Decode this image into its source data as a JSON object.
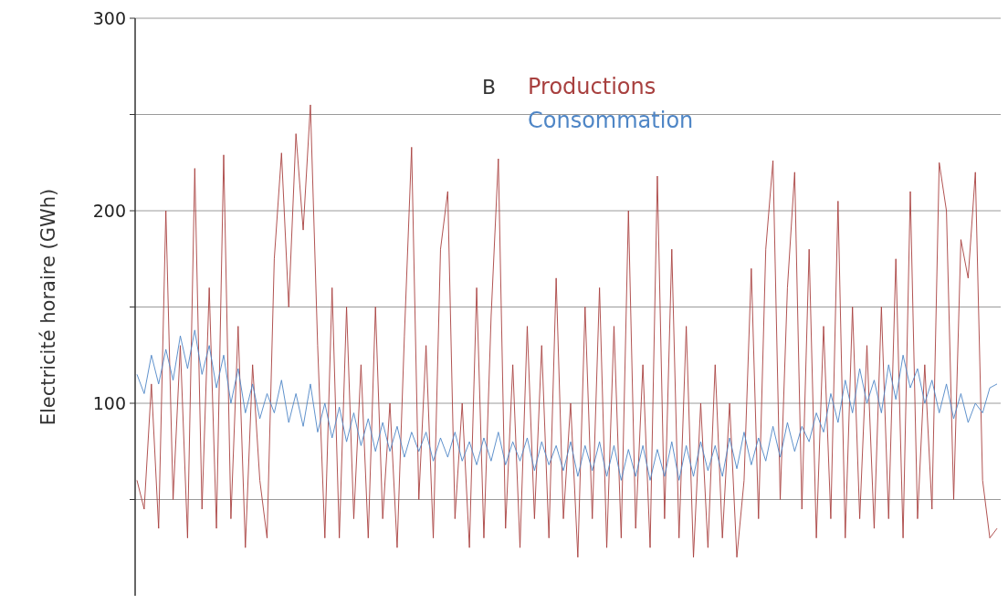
{
  "chart_data": {
    "type": "line",
    "ylabel": "Electricité horaire (GWh)",
    "annotations": [
      "B"
    ],
    "categories": [
      null,
      null,
      null,
      null,
      null,
      null,
      null,
      null,
      null,
      null,
      null,
      null,
      null,
      null,
      null,
      null,
      null,
      null,
      null,
      null,
      null,
      null,
      null,
      null,
      null,
      null,
      null,
      null,
      null,
      null,
      null,
      null,
      null,
      null,
      null,
      null,
      null,
      null,
      null,
      null,
      null,
      null,
      null,
      null,
      null,
      null,
      null,
      null,
      null,
      null,
      null,
      null,
      null,
      null,
      null,
      null,
      null,
      null,
      null,
      null,
      null,
      null,
      null,
      null,
      null,
      null,
      null,
      null,
      null,
      null,
      null,
      null,
      null,
      null,
      null,
      null,
      null,
      null,
      null,
      null,
      null,
      null,
      null,
      null,
      null,
      null,
      null,
      null,
      null,
      null,
      null,
      null,
      null,
      null,
      null,
      null,
      null,
      null,
      null,
      null,
      null,
      null,
      null,
      null,
      null,
      null,
      null,
      null,
      null,
      null,
      null,
      null,
      null,
      null,
      null,
      null,
      null,
      null,
      null,
      null
    ],
    "series": [
      {
        "name": "Productions",
        "color": "#a8403f",
        "values": [
          60,
          45,
          110,
          35,
          200,
          50,
          130,
          30,
          222,
          45,
          160,
          35,
          229,
          40,
          140,
          25,
          120,
          60,
          30,
          175,
          230,
          150,
          240,
          190,
          255,
          130,
          30,
          160,
          30,
          150,
          40,
          120,
          30,
          150,
          40,
          100,
          25,
          135,
          233,
          50,
          130,
          30,
          180,
          210,
          40,
          100,
          25,
          160,
          30,
          145,
          227,
          35,
          120,
          25,
          140,
          40,
          130,
          30,
          165,
          40,
          100,
          20,
          150,
          40,
          160,
          25,
          140,
          30,
          200,
          35,
          120,
          25,
          218,
          40,
          180,
          30,
          140,
          20,
          100,
          25,
          120,
          30,
          100,
          20,
          60,
          170,
          40,
          180,
          226,
          50,
          160,
          220,
          45,
          180,
          30,
          140,
          40,
          205,
          30,
          150,
          40,
          130,
          35,
          150,
          40,
          175,
          30,
          210,
          40,
          120,
          45,
          225,
          200,
          50,
          185,
          165,
          220,
          60,
          30,
          35
        ]
      },
      {
        "name": "Consommation",
        "color": "#4f86c6",
        "values": [
          115,
          105,
          125,
          110,
          128,
          112,
          135,
          118,
          138,
          115,
          130,
          108,
          125,
          100,
          118,
          95,
          110,
          92,
          105,
          95,
          112,
          90,
          105,
          88,
          110,
          85,
          100,
          82,
          98,
          80,
          95,
          78,
          92,
          75,
          90,
          75,
          88,
          72,
          85,
          75,
          85,
          70,
          82,
          72,
          85,
          70,
          80,
          68,
          82,
          70,
          85,
          68,
          80,
          70,
          82,
          65,
          80,
          68,
          78,
          65,
          80,
          62,
          78,
          65,
          80,
          62,
          78,
          60,
          76,
          62,
          78,
          60,
          76,
          62,
          80,
          60,
          78,
          62,
          80,
          65,
          78,
          62,
          82,
          66,
          85,
          68,
          82,
          70,
          88,
          72,
          90,
          75,
          88,
          80,
          95,
          85,
          105,
          90,
          112,
          95,
          118,
          100,
          112,
          95,
          120,
          102,
          125,
          108,
          118,
          100,
          112,
          95,
          110,
          92,
          105,
          90,
          100,
          95,
          108,
          110
        ]
      }
    ],
    "ylim": [
      0,
      300
    ],
    "yticks": [
      {
        "value": 50,
        "label": null
      },
      100,
      {
        "value": 150,
        "label": null
      },
      200,
      {
        "value": 250,
        "label": null
      },
      300
    ],
    "grid": "y",
    "legend": "top",
    "line_style": "solid",
    "marker": "none"
  }
}
